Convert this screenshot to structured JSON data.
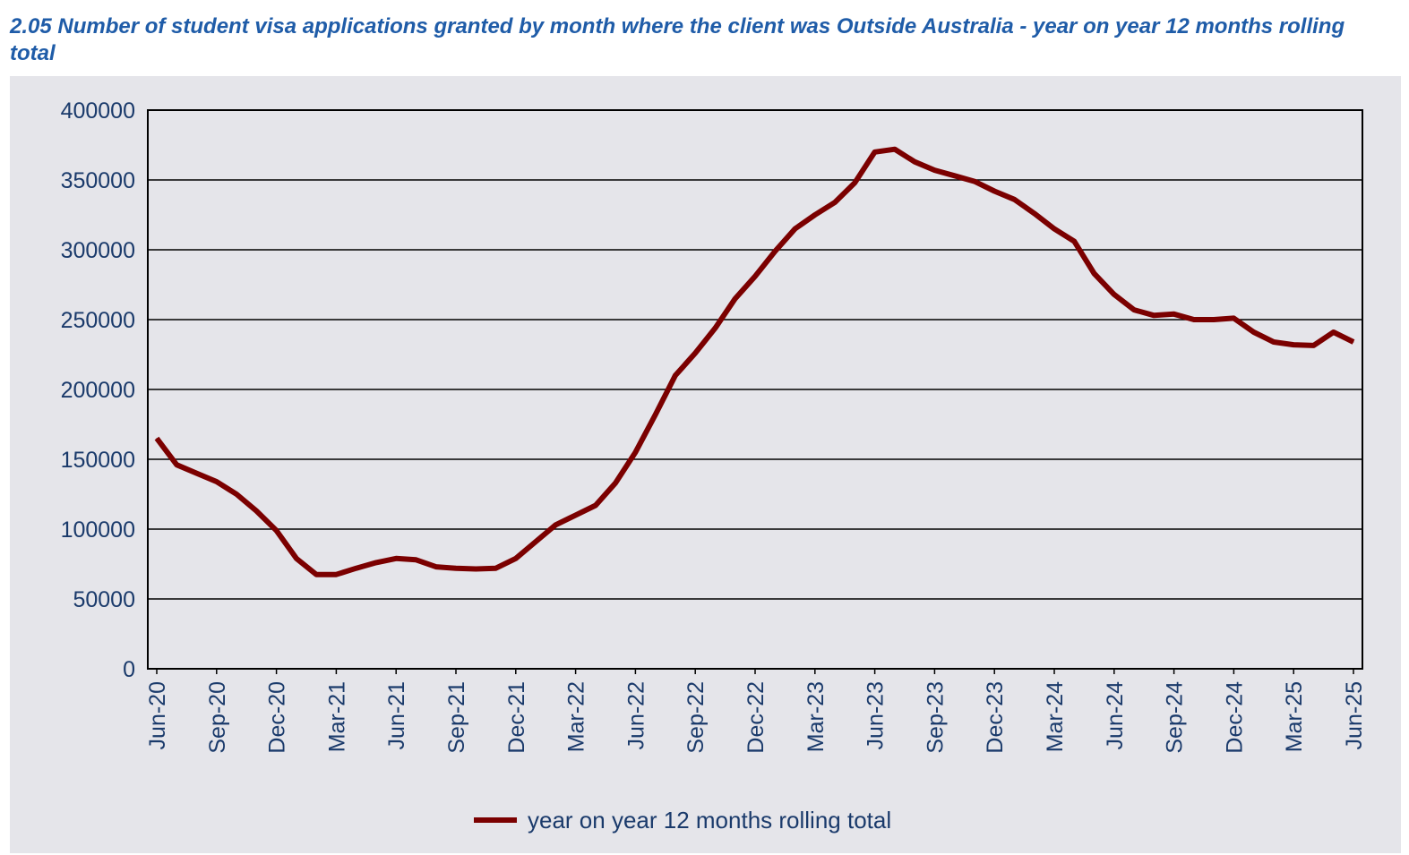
{
  "title": "2.05 Number of student visa applications granted by month where the client was Outside Australia - year on year 12 months rolling total",
  "chart_data": {
    "type": "line",
    "title": "2.05 Number of student visa applications granted by month where the client was Outside Australia - year on year 12 months rolling total",
    "xlabel": "",
    "ylabel": "",
    "ylim": [
      0,
      400000
    ],
    "y_ticks": [
      "0",
      "50000",
      "100000",
      "150000",
      "200000",
      "250000",
      "300000",
      "350000",
      "400000"
    ],
    "x_tick_labels": [
      "Jun-20",
      "Sep-20",
      "Dec-20",
      "Mar-21",
      "Jun-21",
      "Sep-21",
      "Dec-21",
      "Mar-22",
      "Jun-22",
      "Sep-22",
      "Dec-22",
      "Mar-23",
      "Jun-23",
      "Sep-23",
      "Dec-23",
      "Mar-24",
      "Jun-24",
      "Sep-24",
      "Dec-24",
      "Mar-25",
      "Jun-25"
    ],
    "grid": true,
    "legend_position": "bottom",
    "x": [
      "Jun-20",
      "Jul-20",
      "Aug-20",
      "Sep-20",
      "Oct-20",
      "Nov-20",
      "Dec-20",
      "Jan-21",
      "Feb-21",
      "Mar-21",
      "Apr-21",
      "May-21",
      "Jun-21",
      "Jul-21",
      "Aug-21",
      "Sep-21",
      "Oct-21",
      "Nov-21",
      "Dec-21",
      "Jan-22",
      "Feb-22",
      "Mar-22",
      "Apr-22",
      "May-22",
      "Jun-22",
      "Jul-22",
      "Aug-22",
      "Sep-22",
      "Oct-22",
      "Nov-22",
      "Dec-22",
      "Jan-23",
      "Feb-23",
      "Mar-23",
      "Apr-23",
      "May-23",
      "Jun-23",
      "Jul-23",
      "Aug-23",
      "Sep-23",
      "Oct-23",
      "Nov-23",
      "Dec-23",
      "Jan-24",
      "Feb-24",
      "Mar-24",
      "Apr-24",
      "May-24",
      "Jun-24",
      "Jul-24",
      "Aug-24",
      "Sep-24",
      "Oct-24",
      "Nov-24",
      "Dec-24",
      "Jan-25",
      "Feb-25",
      "Mar-25",
      "Apr-25",
      "May-25",
      "Jun-25"
    ],
    "series": [
      {
        "name": "year on year 12 months rolling total",
        "color": "#7b0000",
        "values": [
          165000,
          146000,
          140000,
          134000,
          125000,
          113000,
          99000,
          79000,
          67500,
          67500,
          72000,
          76000,
          79000,
          78000,
          73000,
          72000,
          71500,
          72000,
          79000,
          91000,
          103000,
          110000,
          117000,
          133000,
          155000,
          182000,
          210000,
          226000,
          244000,
          265000,
          281000,
          299000,
          315000,
          325000,
          334000,
          348000,
          370000,
          372000,
          363000,
          357000,
          353000,
          349000,
          342000,
          336000,
          326000,
          315000,
          306000,
          283000,
          268000,
          257000,
          253000,
          254000,
          250000,
          250000,
          251000,
          241000,
          234000,
          232000,
          231500,
          241000,
          234000
        ]
      }
    ]
  }
}
